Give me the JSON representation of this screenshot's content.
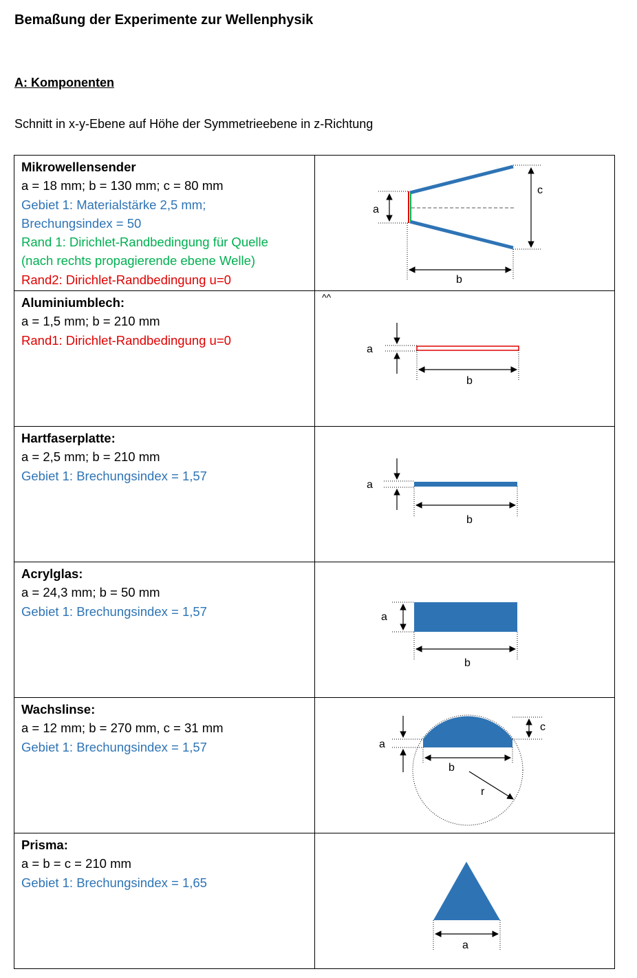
{
  "title": "Bemaßung der Experimente zur Wellenphysik",
  "section_heading": "A: Komponenten",
  "intro": "Schnitt in x-y-Ebene auf Höhe der Symmetrieebene in z-Richtung",
  "colors": {
    "blue": "#2e74b5",
    "green": "#00b050",
    "red": "#e00000"
  },
  "components": [
    {
      "name": "Mikrowellensender",
      "dims": "a = 18 mm; b = 130 mm; c = 80 mm",
      "lines": [
        {
          "text": "Gebiet 1: Materialstärke 2,5 mm;",
          "color": "blue"
        },
        {
          "text": "Brechungsindex = 50",
          "color": "blue"
        },
        {
          "text": "Rand 1: Dirichlet-Randbedingung für Quelle",
          "color": "green"
        },
        {
          "text": "(nach rechts propagierende ebene Welle)",
          "color": "green"
        },
        {
          "text": "Rand2: Dirichlet-Randbedingung u=0",
          "color": "red"
        }
      ],
      "labels": [
        "a",
        "b",
        "c"
      ]
    },
    {
      "name": "Aluminiumblech:",
      "dims": "a = 1,5 mm; b = 210 mm",
      "lines": [
        {
          "text": "Rand1: Dirichlet-Randbedingung u=0",
          "color": "red"
        }
      ],
      "note": "^^",
      "labels": [
        "a",
        "b"
      ]
    },
    {
      "name": "Hartfaserplatte:",
      "dims": "a = 2,5 mm; b = 210 mm",
      "lines": [
        {
          "text": "Gebiet 1: Brechungsindex = 1,57",
          "color": "blue"
        }
      ],
      "labels": [
        "a",
        "b"
      ]
    },
    {
      "name": "Acrylglas:",
      "dims": "a = 24,3 mm; b = 50 mm",
      "lines": [
        {
          "text": "Gebiet 1: Brechungsindex = 1,57",
          "color": "blue"
        }
      ],
      "labels": [
        "a",
        "b"
      ]
    },
    {
      "name": "Wachslinse:",
      "dims": "a = 12 mm; b = 270 mm, c = 31 mm",
      "lines": [
        {
          "text": "Gebiet 1: Brechungsindex = 1,57",
          "color": "blue"
        }
      ],
      "labels": [
        "a",
        "b",
        "c",
        "r"
      ]
    },
    {
      "name": "Prisma:",
      "dims": "a = b = c = 210 mm",
      "lines": [
        {
          "text": "Gebiet 1: Brechungsindex = 1,65",
          "color": "blue"
        }
      ],
      "labels": [
        "a"
      ]
    }
  ]
}
